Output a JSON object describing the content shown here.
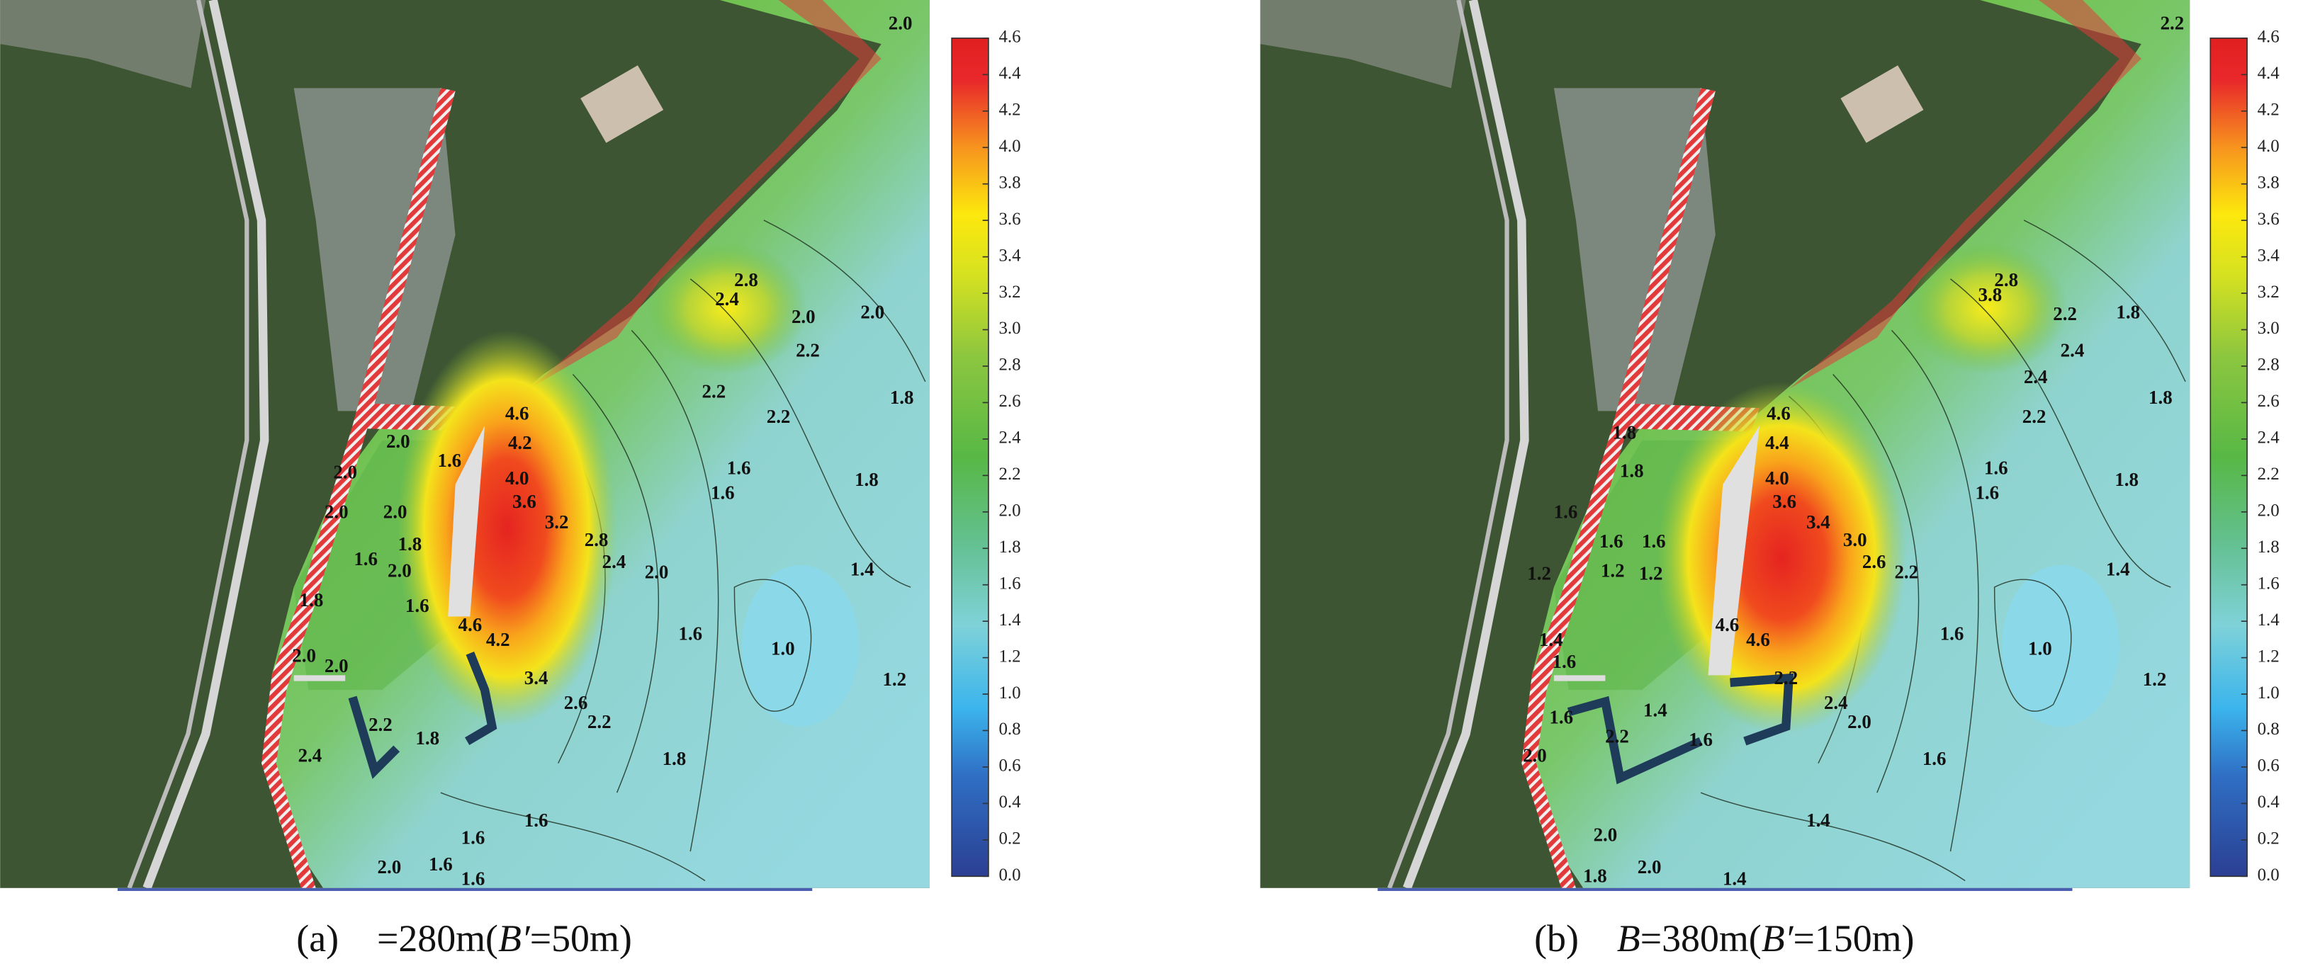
{
  "colorbar": {
    "ticks": [
      {
        "value": 0,
        "label": "0.0"
      },
      0.2,
      0.4,
      0.6,
      0.8,
      {
        "value": 1,
        "label": "1.0"
      },
      1.2,
      1.4,
      1.6,
      1.8,
      {
        "value": 2,
        "label": "2.0"
      },
      2.2,
      2.4,
      2.6,
      2.8,
      {
        "value": 3,
        "label": "3.0"
      },
      3.2,
      3.4,
      3.6,
      3.8,
      {
        "value": 4,
        "label": "4.0"
      },
      4.2,
      4.4,
      4.6
    ],
    "lim": [
      0,
      4.6
    ]
  },
  "panels": [
    {
      "label": "(a)",
      "caption": [
        "=280m(",
        "B′",
        "=50m)"
      ],
      "contour_labels": [
        "2.0",
        "2.8",
        "2.4",
        "2.0",
        "2.2",
        "2.0",
        "2.2",
        "2.2",
        "1.8",
        "1.6",
        "1.8",
        "1.6",
        "1.4",
        "4.6",
        "4.2",
        "4.0",
        "3.6",
        "3.2",
        "2.8",
        "2.4",
        "2.0",
        "1.6",
        "1.0",
        "1.2",
        "4.6",
        "4.2",
        "3.4",
        "2.6",
        "2.2",
        "1.8",
        "1.6",
        "1.6",
        "2.0",
        "2.0",
        "1.6",
        "2.0",
        "2.0",
        "1.8",
        "2.0",
        "1.6",
        "1.6",
        "1.8",
        "2.2",
        "2.0",
        "2.0",
        "1.8",
        "2.4",
        "1.6",
        "1.6",
        "2.0"
      ]
    },
    {
      "label": "(b)",
      "caption": [
        "B",
        "=380m(",
        "B′",
        "=150m)"
      ],
      "contour_labels": [
        "2.2",
        "2.8",
        "3.8",
        "2.2",
        "2.4",
        "1.8",
        "2.4",
        "2.2",
        "1.8",
        "1.6",
        "1.8",
        "1.6",
        "1.4",
        "4.6",
        "4.4",
        "4.0",
        "3.6",
        "3.4",
        "3.0",
        "2.6",
        "2.2",
        "1.6",
        "1.0",
        "1.2",
        "4.6",
        "4.6",
        "2.2",
        "2.4",
        "2.0",
        "1.6",
        "1.4",
        "1.4",
        "1.8",
        "1.8",
        "1.6",
        "1.6",
        "1.6",
        "1.2",
        "1.2",
        "1.2",
        "1.4",
        "1.6",
        "2.2",
        "1.4",
        "1.6",
        "2.0",
        "2.0",
        "1.8",
        "2.0",
        "1.6"
      ]
    }
  ]
}
